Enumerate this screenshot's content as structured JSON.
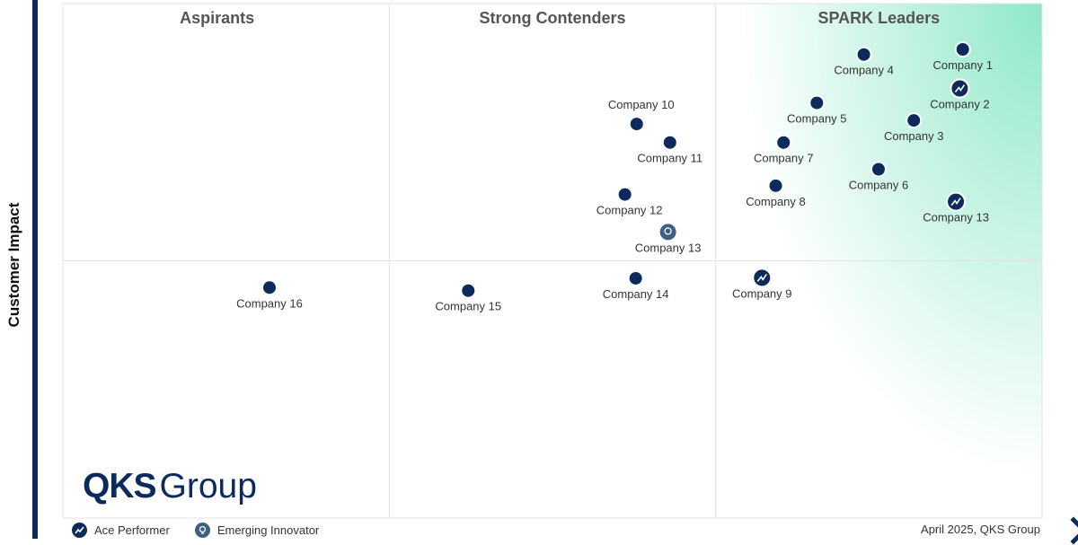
{
  "chart_data": {
    "type": "scatter",
    "title": "",
    "xlabel": "",
    "ylabel": "Customer Impact",
    "xlim": [
      0,
      100
    ],
    "ylim": [
      0,
      100
    ],
    "grid": true,
    "quadrant_titles": [
      "Aspirants",
      "Strong Contenders",
      "SPARK Leaders"
    ],
    "points": [
      {
        "label": "Company 1",
        "x": 91.9,
        "y": 91.1,
        "category": "standard"
      },
      {
        "label": "Company 2",
        "x": 91.6,
        "y": 83.5,
        "category": "ace"
      },
      {
        "label": "Company 3",
        "x": 86.9,
        "y": 77.3,
        "category": "standard"
      },
      {
        "label": "Company 4",
        "x": 81.8,
        "y": 90.1,
        "category": "standard"
      },
      {
        "label": "Company 5",
        "x": 77.0,
        "y": 80.7,
        "category": "standard"
      },
      {
        "label": "Company 6",
        "x": 83.3,
        "y": 67.8,
        "category": "standard"
      },
      {
        "label": "Company 7",
        "x": 73.6,
        "y": 73.0,
        "category": "standard"
      },
      {
        "label": "Company 8",
        "x": 72.8,
        "y": 64.6,
        "category": "standard"
      },
      {
        "label": "Company 9",
        "x": 71.4,
        "y": 46.7,
        "category": "ace"
      },
      {
        "label": "Company 10",
        "x": 58.6,
        "y": 76.6,
        "category": "standard"
      },
      {
        "label": "Company 11",
        "x": 62.0,
        "y": 73.0,
        "category": "standard"
      },
      {
        "label": "Company 12",
        "x": 57.4,
        "y": 62.9,
        "category": "standard"
      },
      {
        "label": "Company 13",
        "x": 61.8,
        "y": 55.6,
        "category": "emerging"
      },
      {
        "label": "Company 13",
        "x": 91.2,
        "y": 61.5,
        "category": "ace"
      },
      {
        "label": "Company 14",
        "x": 58.5,
        "y": 46.6,
        "category": "standard"
      },
      {
        "label": "Company 15",
        "x": 41.4,
        "y": 44.2,
        "category": "standard"
      },
      {
        "label": "Company 16",
        "x": 21.1,
        "y": 44.8,
        "category": "standard"
      }
    ]
  },
  "legend": {
    "ace_label": "Ace Performer",
    "emerging_label": "Emerging Innovator"
  },
  "logo": {
    "bold": "QKS",
    "regular": "Group"
  },
  "footer": {
    "credit": "April 2025, QKS Group"
  },
  "colors": {
    "marker": "#0d2a5c",
    "emerging_marker": "#3d5f82",
    "leader_gradient": "#8ee8c8",
    "grid": "#e3e3e3",
    "quadrant_title": "#555555"
  }
}
